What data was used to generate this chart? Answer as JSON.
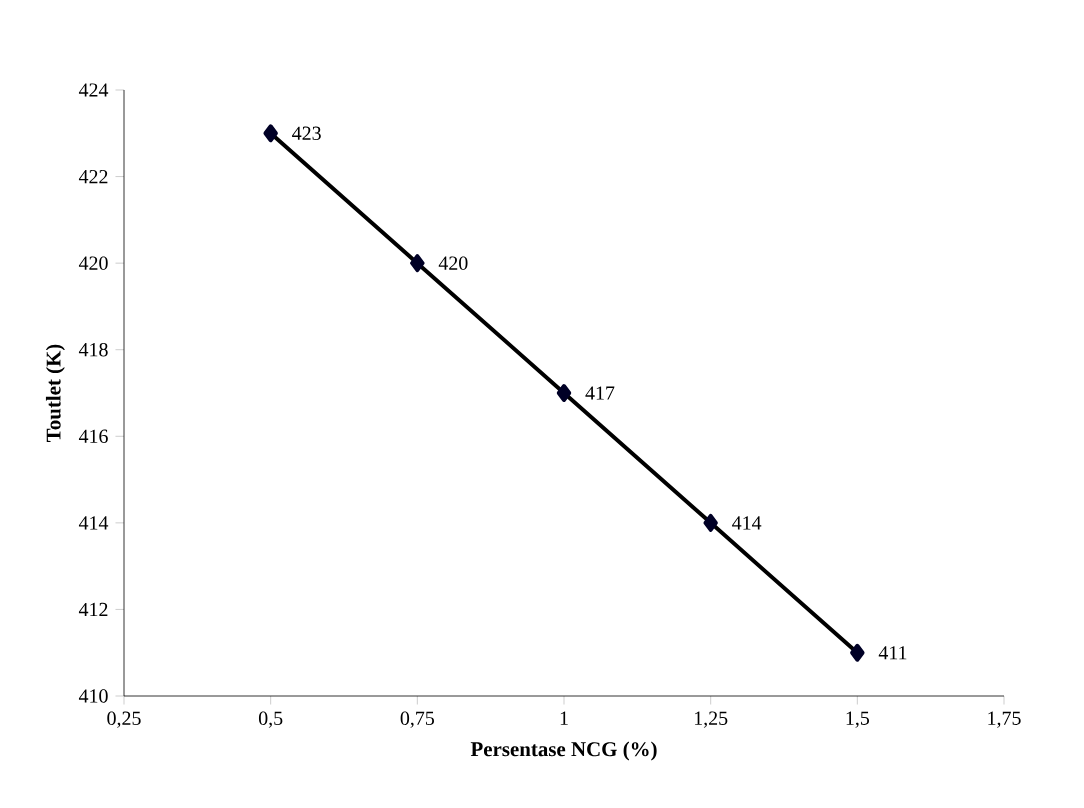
{
  "chart_data": {
    "type": "line",
    "xlabel": "Persentase NCG (%)",
    "ylabel": "Toutlet (K)",
    "x": [
      0.5,
      0.75,
      1,
      1.25,
      1.5
    ],
    "series": [
      {
        "color": "#000000",
        "values": [
          423,
          420,
          417,
          414,
          411
        ]
      }
    ],
    "xlim": [
      0.25,
      1.75
    ],
    "xticks": [
      {
        "value": 0.25,
        "label": "0,25"
      },
      {
        "value": 0.5,
        "label": "0,5"
      },
      {
        "value": 0.75,
        "label": "0,75"
      },
      1,
      {
        "value": 1.25,
        "label": "1,25"
      },
      {
        "value": 1.5,
        "label": "1,5"
      },
      {
        "value": 1.75,
        "label": "1,75"
      }
    ],
    "ylim": [
      410,
      424
    ],
    "yticks": [
      410,
      412,
      414,
      416,
      418,
      420,
      422,
      424
    ],
    "data_labels": true,
    "marker": "diamond",
    "line_style": "solid",
    "grid": false
  }
}
